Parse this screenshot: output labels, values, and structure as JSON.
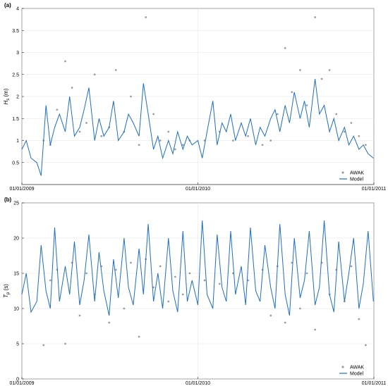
{
  "chart_data": [
    {
      "type": "line",
      "panel_label": "(a)",
      "ylabel": "H_s (m)",
      "ylabel_main": "H",
      "ylabel_sub": "s",
      "ylabel_unit": " (m)",
      "ylim": [
        0,
        4
      ],
      "yticks": [
        0.5,
        1,
        1.5,
        2,
        2.5,
        3,
        3.5,
        4
      ],
      "xlim": [
        "01/01/2009",
        "01/01/2011"
      ],
      "xticks": [
        "01/01/2009",
        "01/01/2010",
        "01/01/2011"
      ],
      "grid": true,
      "legend_position": "bottom-right",
      "series": [
        {
          "name": "AWAK",
          "style": "scatter",
          "color": "#9e9e9e",
          "x": [
            "2009-02-15",
            "2009-03-01",
            "2009-03-15",
            "2009-04-01",
            "2009-04-15",
            "2009-05-01",
            "2009-05-15",
            "2009-06-01",
            "2009-06-15",
            "2009-07-01",
            "2009-07-15",
            "2009-08-01",
            "2009-08-15",
            "2009-09-01",
            "2009-09-15",
            "2009-10-01",
            "2009-10-15",
            "2009-11-01",
            "2009-11-15",
            "2009-12-01",
            "2009-12-15",
            "2010-01-15",
            "2010-02-15",
            "2010-03-15",
            "2010-04-15",
            "2010-05-15",
            "2010-06-01",
            "2010-06-15",
            "2010-07-01",
            "2010-07-15",
            "2010-08-01",
            "2010-08-15",
            "2010-09-01",
            "2010-09-15",
            "2010-10-01",
            "2010-10-15",
            "2010-11-01",
            "2010-11-15",
            "2010-12-01",
            "2010-12-15"
          ],
          "values": [
            1.0,
            0.9,
            1.7,
            2.8,
            2.2,
            1.2,
            1.4,
            2.5,
            1.1,
            1.3,
            2.6,
            1.2,
            2.0,
            0.9,
            3.8,
            1.6,
            1.0,
            1.2,
            0.8,
            0.9,
            1.0,
            1.0,
            1.2,
            1.0,
            1.1,
            0.9,
            1.0,
            1.6,
            3.1,
            2.1,
            2.6,
            1.8,
            3.8,
            2.4,
            2.6,
            1.6,
            1.2,
            1.4,
            1.1,
            0.9
          ]
        },
        {
          "name": "Model",
          "style": "line",
          "color": "#1f6fbf",
          "x": [
            "2009-01-01",
            "2009-01-10",
            "2009-01-20",
            "2009-02-01",
            "2009-02-10",
            "2009-02-20",
            "2009-03-01",
            "2009-03-10",
            "2009-03-20",
            "2009-04-01",
            "2009-04-10",
            "2009-04-20",
            "2009-05-01",
            "2009-05-10",
            "2009-05-20",
            "2009-06-01",
            "2009-06-10",
            "2009-06-20",
            "2009-07-01",
            "2009-07-10",
            "2009-07-20",
            "2009-08-01",
            "2009-08-10",
            "2009-08-20",
            "2009-09-01",
            "2009-09-10",
            "2009-09-20",
            "2009-10-01",
            "2009-10-10",
            "2009-10-20",
            "2009-11-01",
            "2009-11-10",
            "2009-11-20",
            "2009-12-01",
            "2009-12-10",
            "2009-12-20",
            "2010-01-01",
            "2010-01-10",
            "2010-01-20",
            "2010-02-01",
            "2010-02-10",
            "2010-02-20",
            "2010-03-01",
            "2010-03-10",
            "2010-03-20",
            "2010-04-01",
            "2010-04-10",
            "2010-04-20",
            "2010-05-01",
            "2010-05-10",
            "2010-05-20",
            "2010-06-01",
            "2010-06-10",
            "2010-06-20",
            "2010-07-01",
            "2010-07-10",
            "2010-07-20",
            "2010-08-01",
            "2010-08-10",
            "2010-08-20",
            "2010-09-01",
            "2010-09-10",
            "2010-09-20",
            "2010-10-01",
            "2010-10-10",
            "2010-10-20",
            "2010-11-01",
            "2010-11-10",
            "2010-11-20",
            "2010-12-01",
            "2010-12-10",
            "2010-12-20",
            "2010-12-31"
          ],
          "values": [
            0.8,
            1.0,
            0.6,
            0.5,
            0.2,
            1.8,
            0.9,
            1.3,
            1.6,
            1.2,
            2.0,
            1.1,
            1.3,
            1.7,
            2.2,
            1.0,
            1.5,
            1.1,
            1.3,
            1.9,
            1.0,
            1.2,
            1.6,
            1.4,
            1.1,
            2.3,
            1.6,
            0.8,
            1.1,
            0.6,
            1.0,
            0.7,
            1.2,
            0.8,
            1.1,
            0.9,
            1.0,
            0.6,
            1.2,
            1.9,
            0.9,
            1.4,
            1.2,
            1.6,
            1.0,
            1.4,
            1.1,
            1.5,
            0.9,
            1.3,
            1.1,
            1.5,
            1.7,
            1.2,
            1.8,
            1.4,
            2.1,
            1.5,
            1.9,
            1.3,
            2.4,
            1.6,
            1.8,
            1.2,
            1.5,
            1.0,
            1.3,
            0.9,
            1.1,
            0.8,
            0.9,
            0.7,
            0.6
          ]
        }
      ]
    },
    {
      "type": "line",
      "panel_label": "(b)",
      "ylabel": "T_p (s)",
      "ylabel_main": "T",
      "ylabel_sub": "p",
      "ylabel_unit": " (s)",
      "ylim": [
        0,
        25
      ],
      "yticks": [
        0,
        5,
        10,
        15,
        20,
        25
      ],
      "xlim": [
        "01/01/2009",
        "01/01/2011"
      ],
      "xticks": [
        "01/01/2009",
        "01/01/2010",
        "01/01/2011"
      ],
      "grid": true,
      "legend_position": "bottom-right",
      "series": [
        {
          "name": "AWAK",
          "style": "scatter",
          "color": "#9e9e9e",
          "x": [
            "2009-02-15",
            "2009-03-01",
            "2009-03-15",
            "2009-04-01",
            "2009-04-15",
            "2009-05-01",
            "2009-05-15",
            "2009-06-01",
            "2009-06-15",
            "2009-07-01",
            "2009-07-15",
            "2009-08-01",
            "2009-08-15",
            "2009-09-01",
            "2009-09-15",
            "2009-10-01",
            "2009-10-15",
            "2009-11-01",
            "2009-11-15",
            "2009-12-01",
            "2009-12-15",
            "2010-01-15",
            "2010-02-15",
            "2010-03-15",
            "2010-04-15",
            "2010-05-15",
            "2010-06-01",
            "2010-06-15",
            "2010-07-01",
            "2010-07-15",
            "2010-08-01",
            "2010-08-15",
            "2010-09-01",
            "2010-09-15",
            "2010-10-01",
            "2010-10-15",
            "2010-11-01",
            "2010-11-15",
            "2010-12-01",
            "2010-12-15"
          ],
          "values": [
            4.8,
            14.0,
            15.5,
            5.0,
            16.5,
            9.0,
            15.0,
            12.0,
            16.0,
            8.0,
            15.5,
            10.0,
            16.5,
            6.0,
            17.0,
            13.0,
            16.0,
            11.0,
            14.5,
            12.0,
            15.0,
            14.0,
            13.5,
            15.0,
            14.0,
            15.5,
            9.0,
            16.0,
            8.0,
            16.5,
            10.0,
            15.0,
            7.0,
            16.5,
            12.0,
            15.5,
            11.0,
            16.0,
            8.5,
            4.8
          ]
        },
        {
          "name": "Model",
          "style": "line",
          "color": "#1f6fbf",
          "x": [
            "2009-01-01",
            "2009-01-10",
            "2009-01-20",
            "2009-02-01",
            "2009-02-10",
            "2009-02-20",
            "2009-03-01",
            "2009-03-10",
            "2009-03-20",
            "2009-04-01",
            "2009-04-10",
            "2009-04-20",
            "2009-05-01",
            "2009-05-10",
            "2009-05-20",
            "2009-06-01",
            "2009-06-10",
            "2009-06-20",
            "2009-07-01",
            "2009-07-10",
            "2009-07-20",
            "2009-08-01",
            "2009-08-10",
            "2009-08-20",
            "2009-09-01",
            "2009-09-10",
            "2009-09-20",
            "2009-10-01",
            "2009-10-10",
            "2009-10-20",
            "2009-11-01",
            "2009-11-10",
            "2009-11-20",
            "2009-12-01",
            "2009-12-10",
            "2009-12-20",
            "2010-01-01",
            "2010-01-10",
            "2010-01-20",
            "2010-02-01",
            "2010-02-10",
            "2010-02-20",
            "2010-03-01",
            "2010-03-10",
            "2010-03-20",
            "2010-04-01",
            "2010-04-10",
            "2010-04-20",
            "2010-05-01",
            "2010-05-10",
            "2010-05-20",
            "2010-06-01",
            "2010-06-10",
            "2010-06-20",
            "2010-07-01",
            "2010-07-10",
            "2010-07-20",
            "2010-08-01",
            "2010-08-10",
            "2010-08-20",
            "2010-09-01",
            "2010-09-10",
            "2010-09-20",
            "2010-10-01",
            "2010-10-10",
            "2010-10-20",
            "2010-11-01",
            "2010-11-10",
            "2010-11-20",
            "2010-12-01",
            "2010-12-10",
            "2010-12-20",
            "2010-12-31"
          ],
          "values": [
            12.0,
            15.0,
            9.5,
            11.0,
            19.0,
            12.5,
            10.0,
            21.5,
            11.0,
            16.0,
            12.0,
            19.5,
            10.5,
            14.0,
            20.5,
            11.0,
            18.0,
            12.5,
            9.0,
            17.0,
            11.5,
            20.0,
            13.0,
            10.5,
            18.5,
            12.0,
            22.0,
            11.0,
            15.0,
            10.0,
            20.0,
            12.5,
            9.5,
            21.0,
            11.0,
            14.0,
            10.5,
            22.5,
            12.0,
            10.0,
            20.5,
            13.0,
            11.0,
            21.0,
            12.0,
            16.0,
            10.5,
            21.5,
            12.5,
            11.0,
            19.0,
            13.0,
            10.0,
            22.0,
            12.0,
            9.0,
            20.0,
            11.5,
            14.0,
            21.0,
            10.5,
            13.0,
            22.5,
            12.0,
            9.5,
            19.5,
            11.0,
            15.0,
            20.0,
            10.0,
            13.5,
            21.0,
            11.0
          ]
        }
      ]
    }
  ]
}
